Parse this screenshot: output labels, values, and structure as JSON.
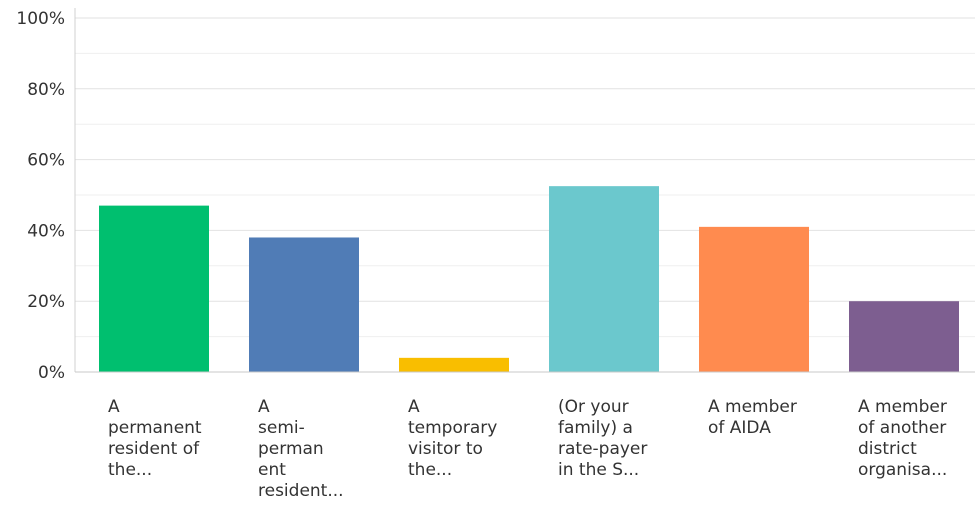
{
  "chart_data": {
    "type": "bar",
    "categories": [
      "A\npermanent\nresident of\nthe...",
      "A\nsemi-perman\nent\nresident...",
      "A\ntemporary\nvisitor to\nthe...",
      "(Or your\nfamily) a\nrate-payer\nin the S...",
      "A member\nof AIDA",
      "A member\nof another\ndistrict\norganisa..."
    ],
    "values": [
      47,
      38,
      4,
      52.5,
      41,
      20
    ],
    "colors": [
      "#00bf6f",
      "#507cb6",
      "#f9be00",
      "#6bc8cd",
      "#ff8b4f",
      "#7d5e90"
    ],
    "ylim": [
      0,
      100
    ],
    "yticks": [
      0,
      20,
      40,
      60,
      80,
      100
    ],
    "ytick_labels": [
      "0%",
      "20%",
      "40%",
      "60%",
      "80%",
      "100%"
    ],
    "grid": true
  }
}
